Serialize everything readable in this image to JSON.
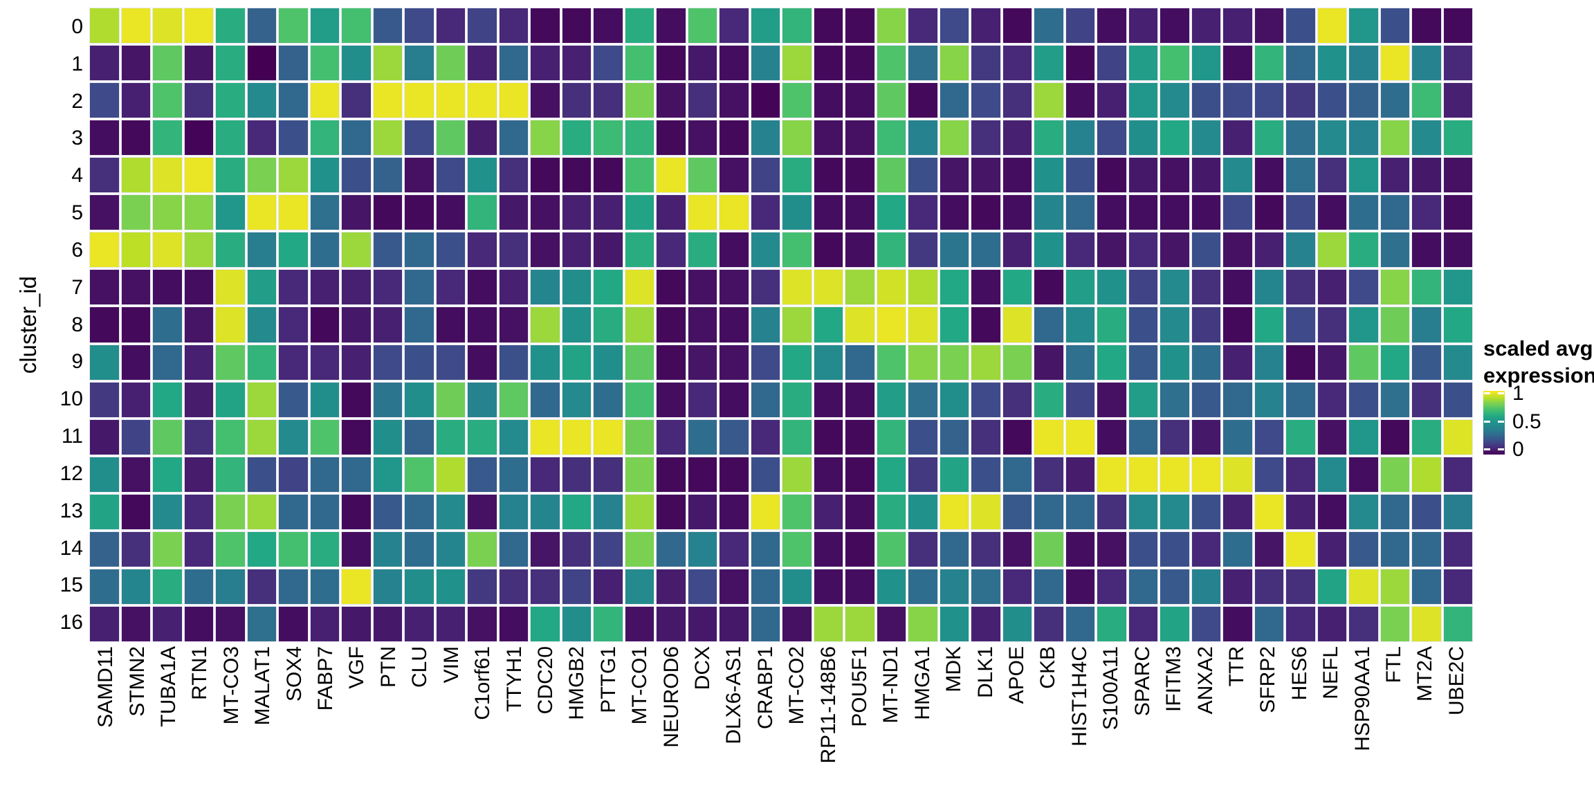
{
  "figure": {
    "background": "#ffffff"
  },
  "y_axis": {
    "label": "cluster_id"
  },
  "legend": {
    "title_line1": "scaled avg.",
    "title_line2": "expression",
    "tick_labels": [
      "1",
      "0.5",
      "0"
    ]
  },
  "chart_data": {
    "type": "heatmap",
    "title": "",
    "xlabel": "",
    "ylabel": "cluster_id",
    "x": [
      "SAMD11",
      "STMN2",
      "TUBA1A",
      "RTN1",
      "MT-CO3",
      "MALAT1",
      "SOX4",
      "FABP7",
      "VGF",
      "PTN",
      "CLU",
      "VIM",
      "C1orf61",
      "TTYH1",
      "CDC20",
      "HMGB2",
      "PTTG1",
      "MT-CO1",
      "NEUROD6",
      "DCX",
      "DLX6-AS1",
      "CRABP1",
      "MT-CO2",
      "RP11-148B6",
      "POU5F1",
      "MT-ND1",
      "HMGA1",
      "MDK",
      "DLK1",
      "APOE",
      "CKB",
      "HIST1H4C",
      "S100A11",
      "SPARC",
      "IFITM3",
      "ANXA2",
      "TTR",
      "SFRP2",
      "HES6",
      "NEFL",
      "HSP90AA1",
      "FTL",
      "MT2A",
      "UBE2C"
    ],
    "y": [
      "0",
      "1",
      "2",
      "3",
      "4",
      "5",
      "6",
      "7",
      "8",
      "9",
      "10",
      "11",
      "12",
      "13",
      "14",
      "15",
      "16"
    ],
    "value_range": [
      0,
      1
    ],
    "colormap": "viridis",
    "colormap_stops": [
      "#440154",
      "#482878",
      "#3e4a89",
      "#31688e",
      "#26828e",
      "#21918c",
      "#22a884",
      "#44bf70",
      "#7ad151",
      "#bddf26",
      "#fde725"
    ],
    "legend_title": "scaled avg. expression",
    "legend_ticks": [
      1,
      0.5,
      0
    ],
    "legend_position": "right",
    "grid_gap_color": "#ffffff",
    "values": [
      [
        0.88,
        0.97,
        0.95,
        0.97,
        0.62,
        0.28,
        0.72,
        0.55,
        0.7,
        0.25,
        0.2,
        0.1,
        0.18,
        0.1,
        0.02,
        0.02,
        0.03,
        0.62,
        0.03,
        0.72,
        0.1,
        0.55,
        0.65,
        0.02,
        0.02,
        0.82,
        0.1,
        0.2,
        0.08,
        0.02,
        0.32,
        0.18,
        0.03,
        0.08,
        0.03,
        0.08,
        0.08,
        0.04,
        0.22,
        0.97,
        0.52,
        0.22,
        0.02,
        0.02
      ],
      [
        0.08,
        0.05,
        0.75,
        0.05,
        0.62,
        0.0,
        0.28,
        0.7,
        0.48,
        0.85,
        0.38,
        0.78,
        0.08,
        0.3,
        0.08,
        0.08,
        0.2,
        0.7,
        0.02,
        0.06,
        0.03,
        0.4,
        0.85,
        0.02,
        0.02,
        0.72,
        0.33,
        0.82,
        0.15,
        0.1,
        0.55,
        0.02,
        0.18,
        0.55,
        0.7,
        0.52,
        0.03,
        0.65,
        0.3,
        0.5,
        0.4,
        0.97,
        0.4,
        0.1
      ],
      [
        0.2,
        0.08,
        0.72,
        0.12,
        0.62,
        0.45,
        0.3,
        0.97,
        0.12,
        0.97,
        0.97,
        0.97,
        0.97,
        0.97,
        0.04,
        0.12,
        0.12,
        0.8,
        0.04,
        0.12,
        0.04,
        0.01,
        0.72,
        0.03,
        0.03,
        0.75,
        0.02,
        0.3,
        0.2,
        0.12,
        0.85,
        0.03,
        0.08,
        0.52,
        0.45,
        0.22,
        0.2,
        0.2,
        0.15,
        0.22,
        0.28,
        0.32,
        0.68,
        0.08
      ],
      [
        0.03,
        0.02,
        0.65,
        0.01,
        0.62,
        0.1,
        0.22,
        0.65,
        0.3,
        0.85,
        0.2,
        0.75,
        0.07,
        0.3,
        0.82,
        0.62,
        0.68,
        0.65,
        0.02,
        0.04,
        0.02,
        0.4,
        0.82,
        0.04,
        0.04,
        0.68,
        0.4,
        0.82,
        0.12,
        0.08,
        0.62,
        0.4,
        0.2,
        0.48,
        0.6,
        0.45,
        0.08,
        0.62,
        0.33,
        0.45,
        0.4,
        0.82,
        0.45,
        0.62
      ],
      [
        0.12,
        0.88,
        0.95,
        0.97,
        0.62,
        0.8,
        0.85,
        0.5,
        0.22,
        0.28,
        0.04,
        0.2,
        0.5,
        0.12,
        0.02,
        0.02,
        0.02,
        0.7,
        0.97,
        0.75,
        0.04,
        0.18,
        0.62,
        0.02,
        0.02,
        0.75,
        0.22,
        0.05,
        0.05,
        0.03,
        0.5,
        0.22,
        0.02,
        0.06,
        0.04,
        0.06,
        0.45,
        0.03,
        0.33,
        0.12,
        0.52,
        0.08,
        0.06,
        0.04
      ],
      [
        0.04,
        0.8,
        0.82,
        0.82,
        0.52,
        0.97,
        0.97,
        0.33,
        0.05,
        0.02,
        0.02,
        0.03,
        0.65,
        0.06,
        0.04,
        0.08,
        0.08,
        0.58,
        0.08,
        0.97,
        0.97,
        0.1,
        0.48,
        0.03,
        0.03,
        0.6,
        0.1,
        0.03,
        0.02,
        0.03,
        0.42,
        0.3,
        0.03,
        0.03,
        0.03,
        0.03,
        0.2,
        0.02,
        0.2,
        0.03,
        0.32,
        0.3,
        0.1,
        0.03
      ],
      [
        0.97,
        0.9,
        0.95,
        0.85,
        0.62,
        0.38,
        0.6,
        0.32,
        0.85,
        0.25,
        0.3,
        0.22,
        0.1,
        0.12,
        0.04,
        0.08,
        0.06,
        0.62,
        0.1,
        0.62,
        0.03,
        0.45,
        0.7,
        0.02,
        0.03,
        0.65,
        0.15,
        0.35,
        0.32,
        0.08,
        0.5,
        0.1,
        0.05,
        0.1,
        0.05,
        0.22,
        0.04,
        0.08,
        0.4,
        0.85,
        0.62,
        0.33,
        0.03,
        0.03
      ],
      [
        0.04,
        0.04,
        0.03,
        0.03,
        0.95,
        0.55,
        0.1,
        0.08,
        0.08,
        0.1,
        0.3,
        0.1,
        0.03,
        0.08,
        0.42,
        0.48,
        0.6,
        0.95,
        0.02,
        0.04,
        0.04,
        0.12,
        0.95,
        0.95,
        0.85,
        0.93,
        0.88,
        0.6,
        0.03,
        0.6,
        0.02,
        0.55,
        0.5,
        0.18,
        0.45,
        0.12,
        0.03,
        0.42,
        0.12,
        0.08,
        0.2,
        0.82,
        0.65,
        0.52
      ],
      [
        0.02,
        0.02,
        0.32,
        0.05,
        0.95,
        0.45,
        0.1,
        0.02,
        0.06,
        0.08,
        0.3,
        0.03,
        0.03,
        0.04,
        0.85,
        0.5,
        0.62,
        0.85,
        0.02,
        0.04,
        0.03,
        0.4,
        0.85,
        0.6,
        0.95,
        0.97,
        0.95,
        0.6,
        0.02,
        0.95,
        0.3,
        0.45,
        0.62,
        0.22,
        0.45,
        0.15,
        0.02,
        0.6,
        0.2,
        0.12,
        0.52,
        0.78,
        0.38,
        0.6
      ],
      [
        0.48,
        0.03,
        0.3,
        0.08,
        0.75,
        0.65,
        0.1,
        0.1,
        0.08,
        0.2,
        0.22,
        0.2,
        0.03,
        0.22,
        0.5,
        0.58,
        0.48,
        0.75,
        0.02,
        0.05,
        0.04,
        0.2,
        0.6,
        0.45,
        0.3,
        0.72,
        0.82,
        0.8,
        0.85,
        0.8,
        0.05,
        0.33,
        0.6,
        0.25,
        0.5,
        0.32,
        0.08,
        0.4,
        0.02,
        0.06,
        0.75,
        0.6,
        0.25,
        0.45
      ],
      [
        0.15,
        0.08,
        0.6,
        0.07,
        0.58,
        0.85,
        0.25,
        0.48,
        0.02,
        0.35,
        0.48,
        0.78,
        0.4,
        0.75,
        0.3,
        0.45,
        0.32,
        0.7,
        0.03,
        0.1,
        0.03,
        0.3,
        0.62,
        0.03,
        0.03,
        0.55,
        0.33,
        0.48,
        0.2,
        0.12,
        0.62,
        0.18,
        0.04,
        0.55,
        0.33,
        0.25,
        0.3,
        0.4,
        0.3,
        0.1,
        0.22,
        0.33,
        0.12,
        0.22
      ],
      [
        0.06,
        0.18,
        0.75,
        0.12,
        0.7,
        0.85,
        0.45,
        0.72,
        0.02,
        0.48,
        0.28,
        0.62,
        0.62,
        0.45,
        0.97,
        0.97,
        0.97,
        0.78,
        0.1,
        0.32,
        0.25,
        0.1,
        0.65,
        0.02,
        0.02,
        0.65,
        0.22,
        0.28,
        0.12,
        0.02,
        0.97,
        0.97,
        0.03,
        0.3,
        0.12,
        0.06,
        0.32,
        0.2,
        0.62,
        0.04,
        0.52,
        0.02,
        0.62,
        0.95
      ],
      [
        0.48,
        0.04,
        0.6,
        0.07,
        0.65,
        0.22,
        0.18,
        0.3,
        0.3,
        0.52,
        0.72,
        0.88,
        0.25,
        0.32,
        0.1,
        0.12,
        0.12,
        0.8,
        0.02,
        0.02,
        0.02,
        0.22,
        0.85,
        0.03,
        0.02,
        0.6,
        0.15,
        0.58,
        0.22,
        0.3,
        0.12,
        0.07,
        0.97,
        0.97,
        0.97,
        0.97,
        0.95,
        0.2,
        0.1,
        0.45,
        0.03,
        0.8,
        0.88,
        0.1
      ],
      [
        0.58,
        0.02,
        0.45,
        0.1,
        0.8,
        0.85,
        0.3,
        0.3,
        0.02,
        0.25,
        0.3,
        0.45,
        0.04,
        0.4,
        0.42,
        0.6,
        0.4,
        0.85,
        0.02,
        0.06,
        0.03,
        0.97,
        0.72,
        0.08,
        0.03,
        0.62,
        0.5,
        0.97,
        0.95,
        0.25,
        0.3,
        0.3,
        0.12,
        0.45,
        0.45,
        0.22,
        0.08,
        0.97,
        0.08,
        0.03,
        0.45,
        0.3,
        0.22,
        0.38
      ],
      [
        0.28,
        0.12,
        0.8,
        0.1,
        0.72,
        0.6,
        0.7,
        0.62,
        0.03,
        0.4,
        0.32,
        0.42,
        0.8,
        0.3,
        0.05,
        0.12,
        0.18,
        0.8,
        0.3,
        0.4,
        0.1,
        0.3,
        0.72,
        0.03,
        0.02,
        0.72,
        0.12,
        0.3,
        0.12,
        0.04,
        0.78,
        0.03,
        0.04,
        0.22,
        0.22,
        0.1,
        0.32,
        0.05,
        0.97,
        0.08,
        0.25,
        0.3,
        0.3,
        0.1
      ],
      [
        0.32,
        0.42,
        0.62,
        0.32,
        0.38,
        0.12,
        0.3,
        0.32,
        0.97,
        0.4,
        0.48,
        0.5,
        0.15,
        0.12,
        0.12,
        0.18,
        0.08,
        0.45,
        0.07,
        0.2,
        0.04,
        0.3,
        0.48,
        0.03,
        0.03,
        0.5,
        0.32,
        0.4,
        0.33,
        0.1,
        0.3,
        0.03,
        0.1,
        0.3,
        0.25,
        0.4,
        0.08,
        0.12,
        0.12,
        0.58,
        0.95,
        0.85,
        0.3,
        0.1
      ],
      [
        0.08,
        0.04,
        0.08,
        0.03,
        0.04,
        0.33,
        0.03,
        0.08,
        0.06,
        0.06,
        0.08,
        0.08,
        0.04,
        0.03,
        0.6,
        0.48,
        0.65,
        0.04,
        0.06,
        0.06,
        0.06,
        0.3,
        0.04,
        0.85,
        0.85,
        0.04,
        0.82,
        0.5,
        0.08,
        0.48,
        0.12,
        0.3,
        0.62,
        0.1,
        0.58,
        0.2,
        0.03,
        0.3,
        0.1,
        0.08,
        0.12,
        0.8,
        0.95,
        0.65
      ]
    ]
  }
}
